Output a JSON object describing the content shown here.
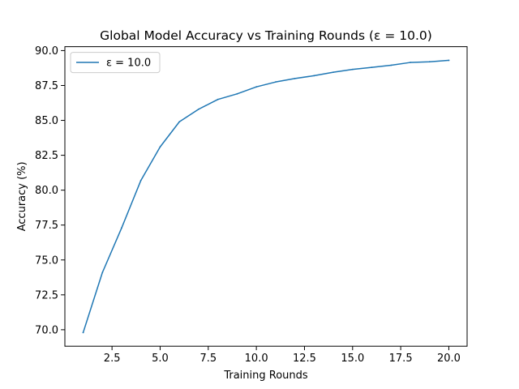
{
  "chart_data": {
    "type": "line",
    "title": "Global Model Accuracy vs Training Rounds (ε = 10.0)",
    "xlabel": "Training Rounds",
    "ylabel": "Accuracy (%)",
    "xlim": [
      0.05,
      20.95
    ],
    "ylim": [
      68.82,
      90.28
    ],
    "xticks": [
      2.5,
      5.0,
      7.5,
      10.0,
      12.5,
      15.0,
      17.5,
      20.0
    ],
    "xtick_labels": [
      "2.5",
      "5.0",
      "7.5",
      "10.0",
      "12.5",
      "15.0",
      "17.5",
      "20.0"
    ],
    "yticks": [
      70.0,
      72.5,
      75.0,
      77.5,
      80.0,
      82.5,
      85.0,
      87.5,
      90.0
    ],
    "ytick_labels": [
      "70.0",
      "72.5",
      "75.0",
      "77.5",
      "80.0",
      "82.5",
      "85.0",
      "87.5",
      "90.0"
    ],
    "grid": false,
    "legend_position": "upper-left",
    "series": [
      {
        "name": "ε = 10.0",
        "color": "#1f77b4",
        "x": [
          1,
          2,
          3,
          4,
          5,
          6,
          7,
          8,
          9,
          10,
          11,
          12,
          13,
          14,
          15,
          16,
          17,
          18,
          19,
          20
        ],
        "y": [
          69.8,
          74.1,
          77.3,
          80.7,
          83.1,
          84.9,
          85.8,
          86.5,
          86.9,
          87.4,
          87.75,
          88.0,
          88.2,
          88.45,
          88.65,
          88.8,
          88.95,
          89.15,
          89.2,
          89.3
        ]
      }
    ]
  }
}
